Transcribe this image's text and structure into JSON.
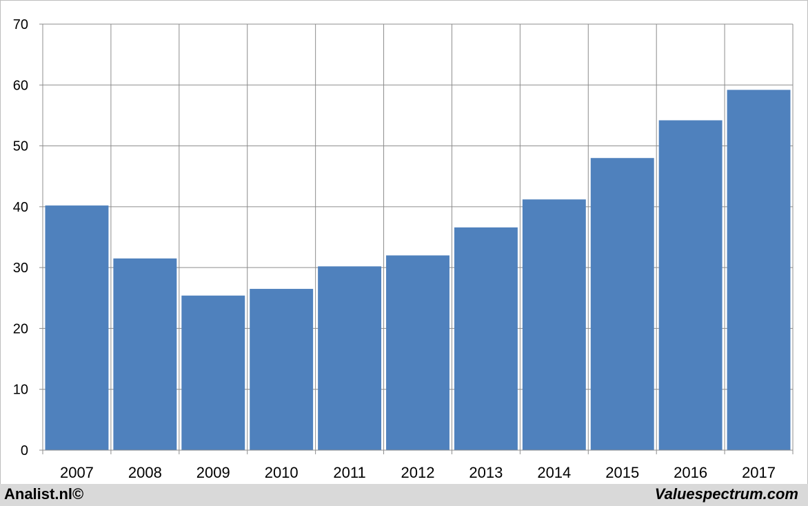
{
  "chart_data": {
    "type": "bar",
    "categories": [
      "2007",
      "2008",
      "2009",
      "2010",
      "2011",
      "2012",
      "2013",
      "2014",
      "2015",
      "2016",
      "2017"
    ],
    "values": [
      40.2,
      31.5,
      25.4,
      26.5,
      30.2,
      32.0,
      36.6,
      41.2,
      48.0,
      54.2,
      59.2
    ],
    "title": "",
    "xlabel": "",
    "ylabel": "",
    "ylim": [
      0,
      70
    ],
    "yticks": [
      0,
      10,
      20,
      30,
      40,
      50,
      60,
      70
    ],
    "grid": true,
    "legend": "none",
    "bar_color": "#4f81bd"
  },
  "footer": {
    "left": "Analist.nl©",
    "right": "Valuespectrum.com"
  }
}
